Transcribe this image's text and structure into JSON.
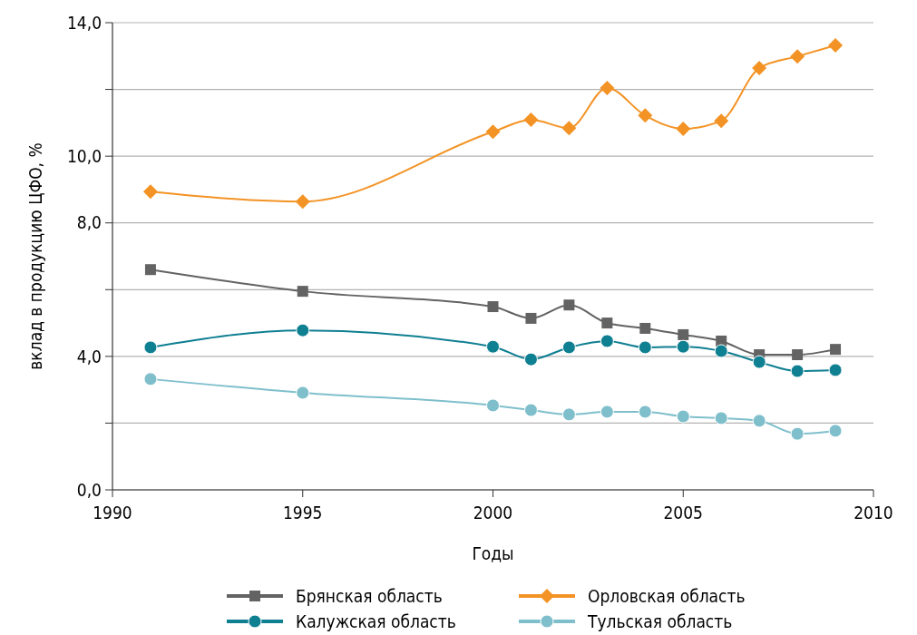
{
  "chart_data": {
    "type": "line",
    "xlabel": "Годы",
    "ylabel": "вклад в продукцию ЦФО, %",
    "xlim": [
      1990,
      2010
    ],
    "xticks": [
      1990,
      1995,
      2000,
      2005,
      2010
    ],
    "ylim": [
      0,
      14
    ],
    "yticks": [
      {
        "value": 0,
        "label": "0,0"
      },
      {
        "value": 2,
        "label": null
      },
      {
        "value": 4,
        "label": "4,0"
      },
      {
        "value": 6,
        "label": null
      },
      {
        "value": 8,
        "label": "8,0"
      },
      {
        "value": 10,
        "label": "10,0"
      },
      {
        "value": 12,
        "label": null
      },
      {
        "value": 14,
        "label": "14,0"
      }
    ],
    "grid": "y",
    "legend": "bottom",
    "x": [
      1991,
      1995,
      2000,
      2001,
      2002,
      2003,
      2004,
      2005,
      2006,
      2007,
      2008,
      2009
    ],
    "series": [
      {
        "name": "Брянская область",
        "color": "#636363",
        "marker": "square",
        "values": [
          6.6,
          5.95,
          5.49,
          5.14,
          5.54,
          5.0,
          4.84,
          4.65,
          4.46,
          4.05,
          4.05,
          4.21
        ]
      },
      {
        "name": "Орловская область",
        "color": "#f39325",
        "marker": "diamond",
        "values": [
          8.94,
          8.64,
          10.73,
          11.09,
          10.84,
          12.04,
          11.22,
          10.82,
          11.06,
          12.64,
          12.99,
          13.32
        ]
      },
      {
        "name": "Калужская область",
        "color": "#0f7f92",
        "marker": "circle",
        "values": [
          4.27,
          4.78,
          4.29,
          3.91,
          4.27,
          4.46,
          4.27,
          4.29,
          4.16,
          3.83,
          3.56,
          3.59
        ]
      },
      {
        "name": "Тульская область",
        "color": "#7fbfcc",
        "marker": "circle",
        "values": [
          3.32,
          2.91,
          2.53,
          2.39,
          2.26,
          2.34,
          2.34,
          2.2,
          2.15,
          2.07,
          1.68,
          1.77
        ]
      }
    ]
  }
}
